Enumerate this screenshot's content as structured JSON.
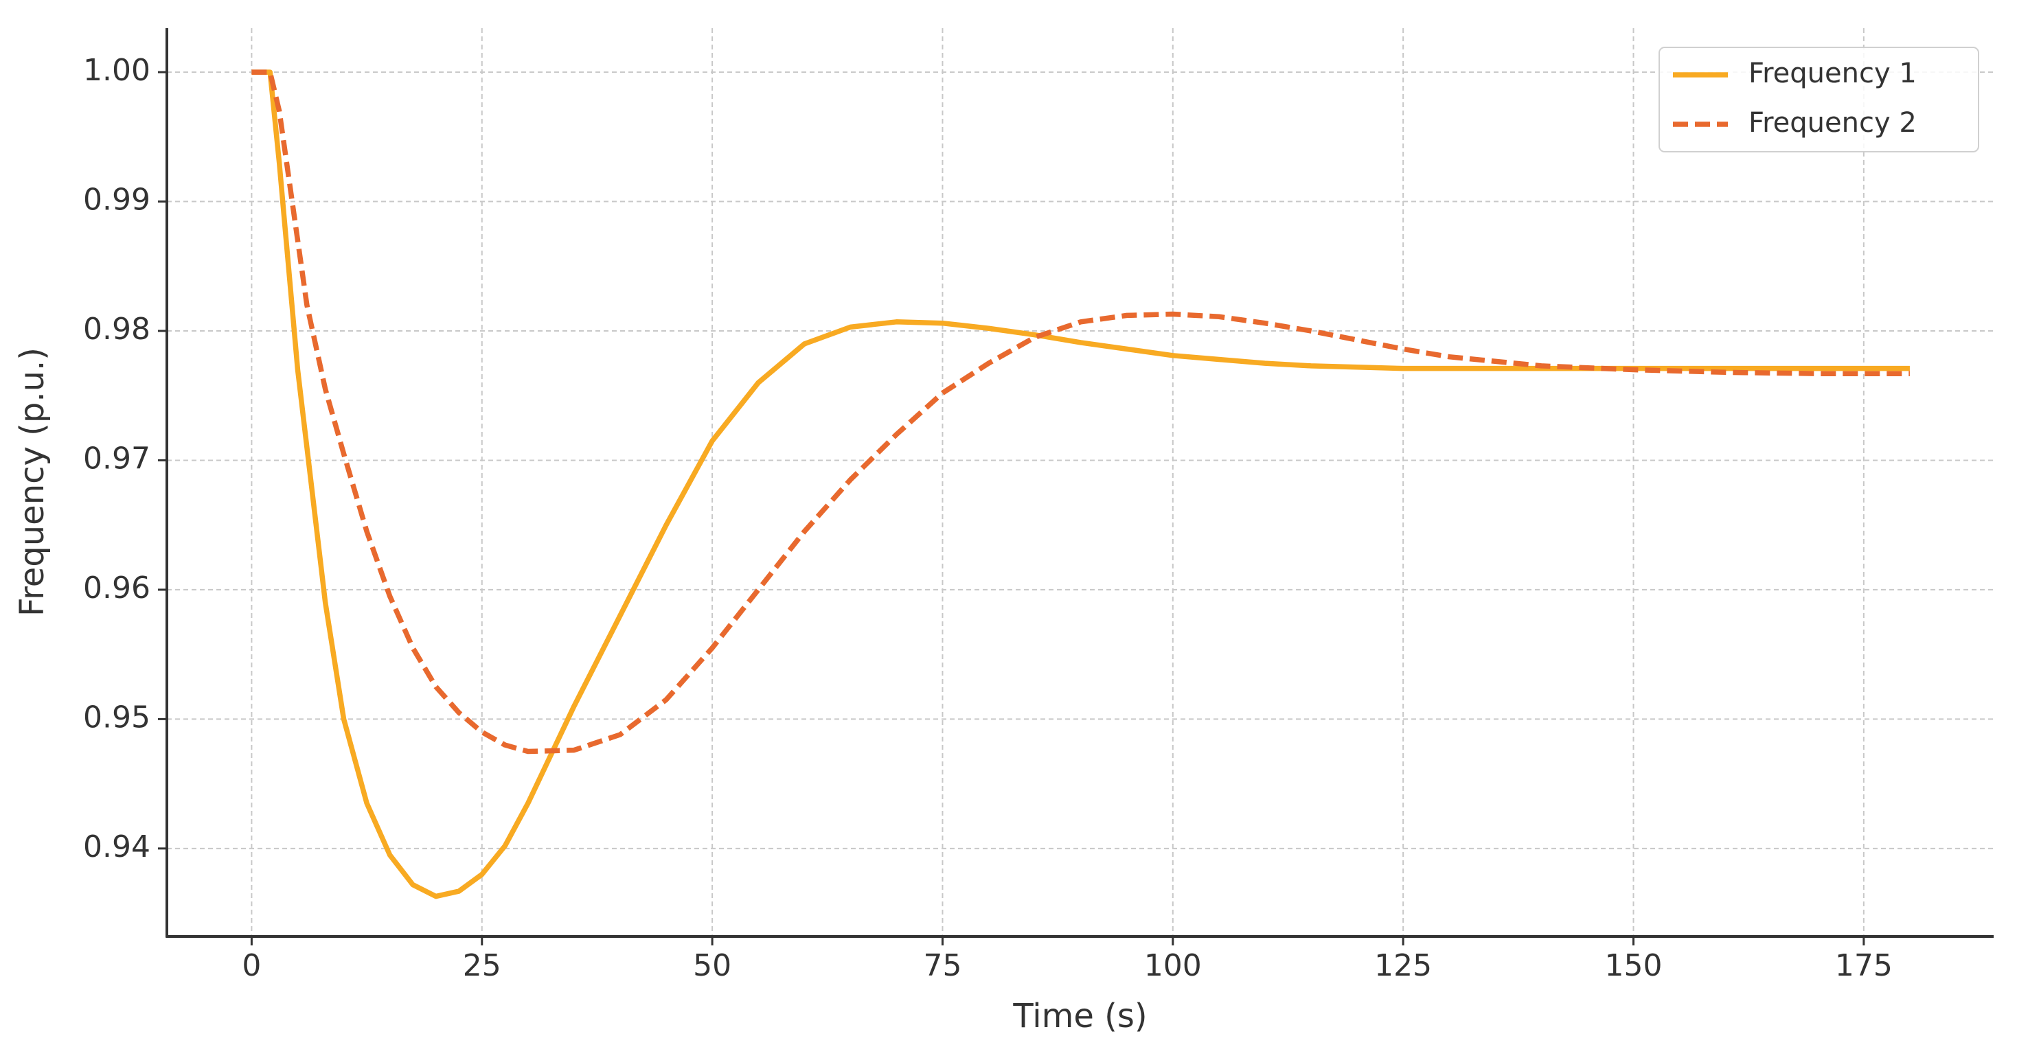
{
  "chart_data": {
    "type": "line",
    "xlabel": "Time (s)",
    "ylabel": "Frequency (p.u.)",
    "x": [
      0,
      2,
      3,
      4,
      5,
      6,
      8,
      10,
      12.5,
      15,
      17.5,
      20,
      22.5,
      25,
      27.5,
      30,
      35,
      40,
      45,
      50,
      55,
      60,
      65,
      70,
      75,
      80,
      85,
      90,
      95,
      100,
      105,
      110,
      115,
      120,
      125,
      130,
      140,
      150,
      160,
      170,
      180
    ],
    "series": [
      {
        "name": "Frequency 1",
        "color": "#f8aa22",
        "linestyle": "solid",
        "values": [
          1,
          1,
          0.993,
          0.985,
          0.977,
          0.971,
          0.959,
          0.95,
          0.9435,
          0.9395,
          0.9372,
          0.9363,
          0.9367,
          0.938,
          0.9402,
          0.9435,
          0.951,
          0.958,
          0.965,
          0.9715,
          0.976,
          0.979,
          0.9803,
          0.9807,
          0.9806,
          0.9802,
          0.9797,
          0.9791,
          0.9786,
          0.9781,
          0.9778,
          0.9775,
          0.9773,
          0.9772,
          0.9771,
          0.9771,
          0.9771,
          0.9771,
          0.9771,
          0.9771,
          0.9771
        ]
      },
      {
        "name": "Frequency 2",
        "color": "#e8692e",
        "linestyle": "dashed",
        "values": [
          1,
          1,
          0.997,
          0.992,
          0.987,
          0.982,
          0.9755,
          0.9705,
          0.9645,
          0.9595,
          0.9555,
          0.9525,
          0.9505,
          0.949,
          0.948,
          0.9475,
          0.9476,
          0.9488,
          0.9515,
          0.9555,
          0.96,
          0.9645,
          0.9685,
          0.972,
          0.9752,
          0.9775,
          0.9795,
          0.9807,
          0.9812,
          0.9813,
          0.9811,
          0.9806,
          0.98,
          0.9793,
          0.9786,
          0.978,
          0.9773,
          0.977,
          0.9768,
          0.9767,
          0.9767
        ]
      }
    ],
    "xlim": [
      -9.2,
      189.1
    ],
    "xticks": [
      0,
      25,
      50,
      75,
      100,
      125,
      150,
      175
    ],
    "ylim": [
      0.9332,
      1.0034
    ],
    "yticks": [
      {
        "value": 1,
        "label": "1.00"
      },
      0.99,
      0.98,
      0.97,
      0.96,
      0.95,
      0.94
    ],
    "grid": true,
    "legend": "upper right"
  }
}
